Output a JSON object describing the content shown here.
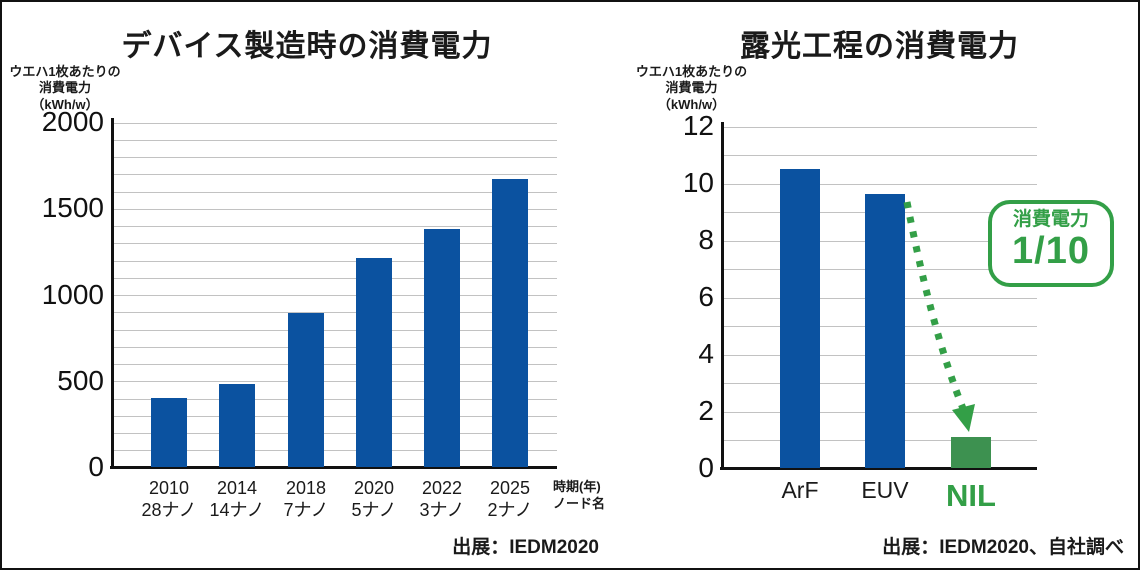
{
  "colors": {
    "bar_blue": "#0b52a0",
    "bar_green": "#3d9150",
    "accent_green": "#339f47",
    "grid": "#c2c2c2",
    "axis": "#111111"
  },
  "chart_data": [
    {
      "type": "bar",
      "title": "デバイス製造時の消費電力",
      "ylabel_lines": [
        "ウエハ1枚あたりの",
        "消費電力",
        "（kWh/w）"
      ],
      "categories": [
        [
          "2010",
          "28ナノ"
        ],
        [
          "2014",
          "14ナノ"
        ],
        [
          "2018",
          "7ナノ"
        ],
        [
          "2020",
          "5ナノ"
        ],
        [
          "2022",
          "3ナノ"
        ],
        [
          "2025",
          "2ナノ"
        ]
      ],
      "values": [
        400,
        480,
        890,
        1210,
        1380,
        1670
      ],
      "ylim": [
        0,
        2000
      ],
      "grid_step": 100,
      "tick_step": 500,
      "bar_color": "#0b52a0",
      "xaxis_note_lines": [
        "時期(年)",
        "ノード名"
      ],
      "source": "出展：IEDM2020",
      "legend": "none",
      "grid": "horizontal"
    },
    {
      "type": "bar",
      "title": "露光工程の消費電力",
      "ylabel_lines": [
        "ウエハ1枚あたりの",
        "消費電力",
        "（kWh/w）"
      ],
      "categories": [
        [
          "ArF"
        ],
        [
          "EUV"
        ],
        [
          "NIL"
        ]
      ],
      "values": [
        10.5,
        9.6,
        1.1
      ],
      "ylim": [
        0,
        12
      ],
      "grid_step": 1,
      "tick_step": 2,
      "bar_colors": [
        "#0b52a0",
        "#0b52a0",
        "#3d9150"
      ],
      "label_colors": [
        "#1a1a1a",
        "#1a1a1a",
        "#339f47"
      ],
      "label_sizes": [
        23,
        23,
        31
      ],
      "label_weights": [
        400,
        400,
        700
      ],
      "annotation": {
        "lines": [
          "消費電力",
          "1/10"
        ],
        "color": "#339f47"
      },
      "source": "出展：IEDM2020、自社調べ",
      "legend": "none",
      "grid": "horizontal"
    }
  ]
}
